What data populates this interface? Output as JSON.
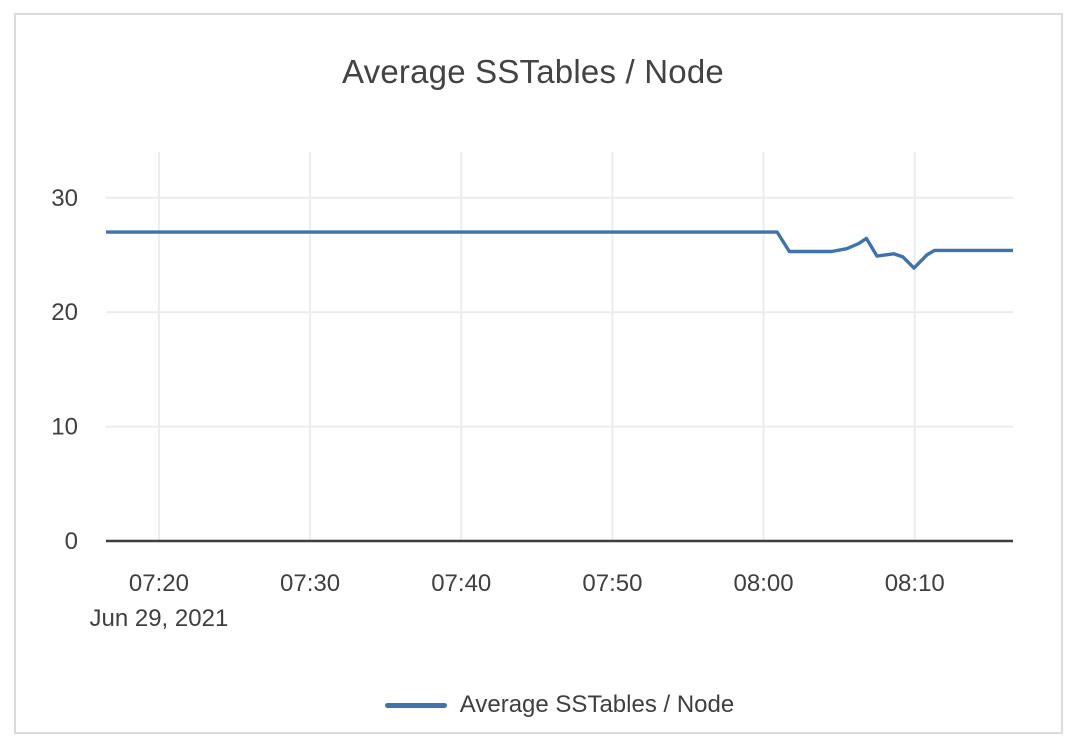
{
  "card": {
    "background": "#ffffff",
    "border_color": "#dbdbdb"
  },
  "colors": {
    "series_line": "#3e73ad",
    "gridline": "#ececec",
    "axis_line": "#3d3d3d",
    "tick_text": "#3f3f3f",
    "title_text": "#434343"
  },
  "chart_data": {
    "type": "line",
    "title": "Average SSTables / Node",
    "x_axis_date": "Jun 29, 2021",
    "x_unit": "minutes_since_midnight",
    "x_range": [
      436.5,
      496.5
    ],
    "y_range": [
      0,
      34
    ],
    "grid": true,
    "legend_position": "bottom",
    "x_ticks": [
      {
        "label": "07:20",
        "t": 440
      },
      {
        "label": "07:30",
        "t": 450
      },
      {
        "label": "07:40",
        "t": 460
      },
      {
        "label": "07:50",
        "t": 470
      },
      {
        "label": "08:00",
        "t": 480
      },
      {
        "label": "08:10",
        "t": 490
      }
    ],
    "y_ticks": [
      {
        "label": "0",
        "v": 0
      },
      {
        "label": "10",
        "v": 10
      },
      {
        "label": "20",
        "v": 20
      },
      {
        "label": "30",
        "v": 30
      }
    ],
    "series": [
      {
        "name": "Average SSTables / Node",
        "color": "#3e73ad",
        "points": [
          [
            436.5,
            27
          ],
          [
            480.9,
            27
          ],
          [
            481.7,
            25.3
          ],
          [
            484.5,
            25.3
          ],
          [
            485.5,
            25.55
          ],
          [
            486.3,
            26.0
          ],
          [
            486.8,
            26.45
          ],
          [
            487.5,
            24.9
          ],
          [
            488.6,
            25.1
          ],
          [
            489.2,
            24.85
          ],
          [
            489.95,
            23.85
          ],
          [
            490.8,
            25.0
          ],
          [
            491.3,
            25.4
          ],
          [
            496.5,
            25.4
          ]
        ]
      }
    ]
  }
}
